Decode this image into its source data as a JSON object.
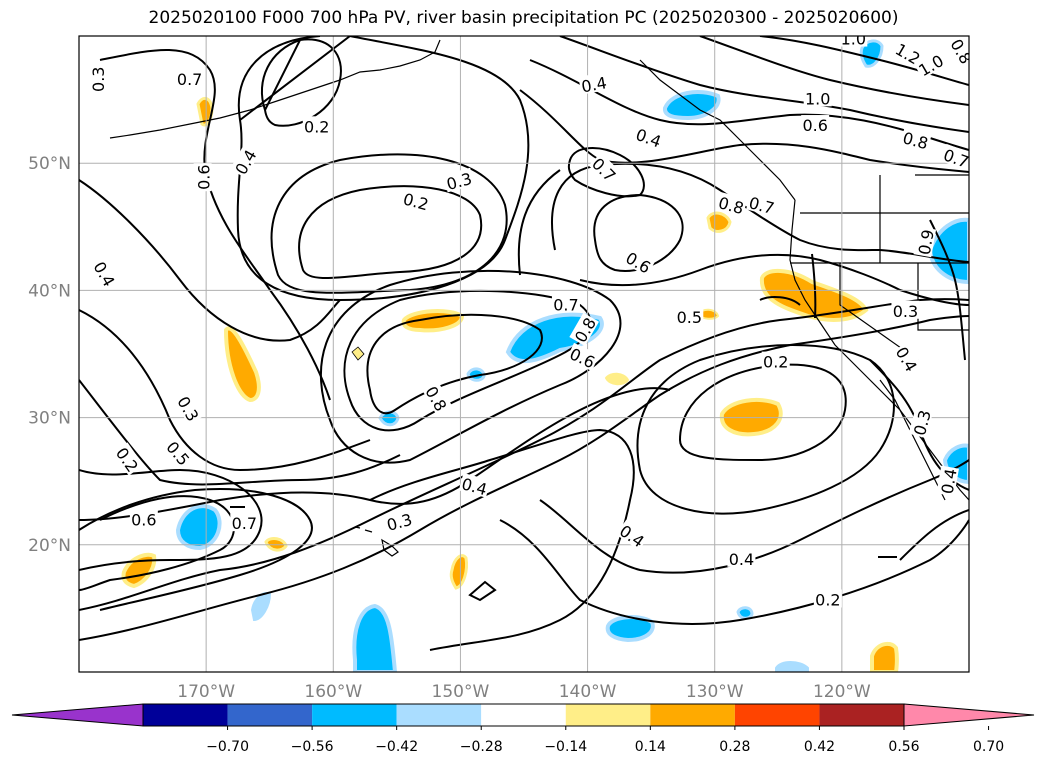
{
  "title": "2025020100 F000 700 hPa PV, river basin precipitation PC (2025020300 - 2025020600)",
  "map": {
    "lat_labels": [
      "50°N",
      "40°N",
      "30°N",
      "20°N"
    ],
    "lon_labels": [
      "170°W",
      "160°W",
      "150°W",
      "140°W",
      "130°W",
      "120°W"
    ],
    "lat_values": [
      50,
      40,
      30,
      20
    ],
    "lon_values": [
      -170,
      -160,
      -150,
      -140,
      -130,
      -120
    ],
    "extent": {
      "lon": [
        -180,
        -110
      ],
      "lat": [
        10,
        60
      ]
    },
    "gridlines": true,
    "contour_labels": [
      {
        "text": "0.7",
        "lon": -171.3,
        "lat": 56.6,
        "rot": 0
      },
      {
        "text": "0.3",
        "lon": -178.5,
        "lat": 56.6,
        "rot": 90
      },
      {
        "text": "0.6",
        "lon": -170.2,
        "lat": 48.9,
        "rot": 90
      },
      {
        "text": "0.4",
        "lon": -166.9,
        "lat": 50.1,
        "rot": 60
      },
      {
        "text": "0.2",
        "lon": -161.3,
        "lat": 52.9,
        "rot": 0
      },
      {
        "text": "0.3",
        "lon": -150.1,
        "lat": 48.6,
        "rot": 15
      },
      {
        "text": "0.2",
        "lon": -153.5,
        "lat": 47.0,
        "rot": -15
      },
      {
        "text": "0.4",
        "lon": -139.5,
        "lat": 56.2,
        "rot": 10
      },
      {
        "text": "0.4",
        "lon": -135.2,
        "lat": 52.0,
        "rot": -20
      },
      {
        "text": "0.7",
        "lon": -138.7,
        "lat": 49.5,
        "rot": -45
      },
      {
        "text": "1.0",
        "lon": -119.1,
        "lat": 59.8,
        "rot": 0
      },
      {
        "text": "1.2",
        "lon": -114.8,
        "lat": 58.6,
        "rot": -30
      },
      {
        "text": "1.0",
        "lon": -113.0,
        "lat": 57.7,
        "rot": 30
      },
      {
        "text": "0.8",
        "lon": -110.6,
        "lat": 58.8,
        "rot": -60
      },
      {
        "text": "1.0",
        "lon": -121.9,
        "lat": 55.1,
        "rot": 0
      },
      {
        "text": "0.6",
        "lon": -122.1,
        "lat": 53.0,
        "rot": 0
      },
      {
        "text": "0.8",
        "lon": -114.2,
        "lat": 51.8,
        "rot": -15
      },
      {
        "text": "0.7",
        "lon": -111.0,
        "lat": 50.4,
        "rot": -20
      },
      {
        "text": "0.8",
        "lon": -128.7,
        "lat": 46.7,
        "rot": -15
      },
      {
        "text": "0.7",
        "lon": -126.3,
        "lat": 46.7,
        "rot": -15
      },
      {
        "text": "0.6",
        "lon": -136.0,
        "lat": 42.2,
        "rot": -30
      },
      {
        "text": "0.9",
        "lon": -113.4,
        "lat": 43.8,
        "rot": 80
      },
      {
        "text": "0.4",
        "lon": -178.0,
        "lat": 41.3,
        "rot": -60
      },
      {
        "text": "0.7",
        "lon": -141.7,
        "lat": 38.9,
        "rot": 0
      },
      {
        "text": "0.8",
        "lon": -140.2,
        "lat": 36.9,
        "rot": 60
      },
      {
        "text": "0.6",
        "lon": -140.4,
        "lat": 34.7,
        "rot": -25
      },
      {
        "text": "0.5",
        "lon": -132.0,
        "lat": 37.9,
        "rot": 0
      },
      {
        "text": "0.3",
        "lon": -115.0,
        "lat": 38.4,
        "rot": 0
      },
      {
        "text": "0.2",
        "lon": -125.2,
        "lat": 34.4,
        "rot": 0
      },
      {
        "text": "0.4",
        "lon": -114.9,
        "lat": 34.6,
        "rot": -60
      },
      {
        "text": "0.8",
        "lon": -151.9,
        "lat": 31.5,
        "rot": -60
      },
      {
        "text": "0.3",
        "lon": -113.7,
        "lat": 29.6,
        "rot": 75
      },
      {
        "text": "0.3",
        "lon": -171.4,
        "lat": 30.7,
        "rot": -60
      },
      {
        "text": "0.2",
        "lon": -176.2,
        "lat": 26.7,
        "rot": -55
      },
      {
        "text": "0.5",
        "lon": -172.2,
        "lat": 27.2,
        "rot": -50
      },
      {
        "text": "0.4",
        "lon": -148.9,
        "lat": 24.6,
        "rot": -15
      },
      {
        "text": "0.4",
        "lon": -111.6,
        "lat": 25.0,
        "rot": 80
      },
      {
        "text": "0.6",
        "lon": -174.9,
        "lat": 22.0,
        "rot": 0
      },
      {
        "text": "0.7",
        "lon": -167.0,
        "lat": 21.7,
        "rot": 0
      },
      {
        "text": "0.3",
        "lon": -154.8,
        "lat": 21.8,
        "rot": 15
      },
      {
        "text": "0.4",
        "lon": -136.5,
        "lat": 20.7,
        "rot": -35
      },
      {
        "text": "0.4",
        "lon": -127.9,
        "lat": 18.9,
        "rot": 0
      },
      {
        "text": "0.2",
        "lon": -121.1,
        "lat": 15.7,
        "rot": 0
      }
    ]
  },
  "colorbar": {
    "tick_labels": [
      "−0.70",
      "−0.56",
      "−0.42",
      "−0.28",
      "−0.14",
      "0.14",
      "0.28",
      "0.42",
      "0.56",
      "0.70"
    ],
    "ticks": [
      -0.7,
      -0.56,
      -0.42,
      -0.28,
      -0.14,
      0.14,
      0.28,
      0.42,
      0.56,
      0.7
    ],
    "colors": [
      "#9933cc",
      "#000099",
      "#3366cc",
      "#00bbff",
      "#aaddff",
      "#ffffff",
      "#ffee88",
      "#ffaa00",
      "#ff4400",
      "#aa2222",
      "#ff88aa"
    ]
  },
  "colors": {
    "contour": "#000000",
    "coast": "#000000",
    "grid": "#b0b0b0",
    "label": "#808080",
    "shade_light_blue": "#aaddff",
    "shade_blue": "#00bbff",
    "shade_light_yellow": "#ffee88",
    "shade_orange": "#ffaa00"
  }
}
